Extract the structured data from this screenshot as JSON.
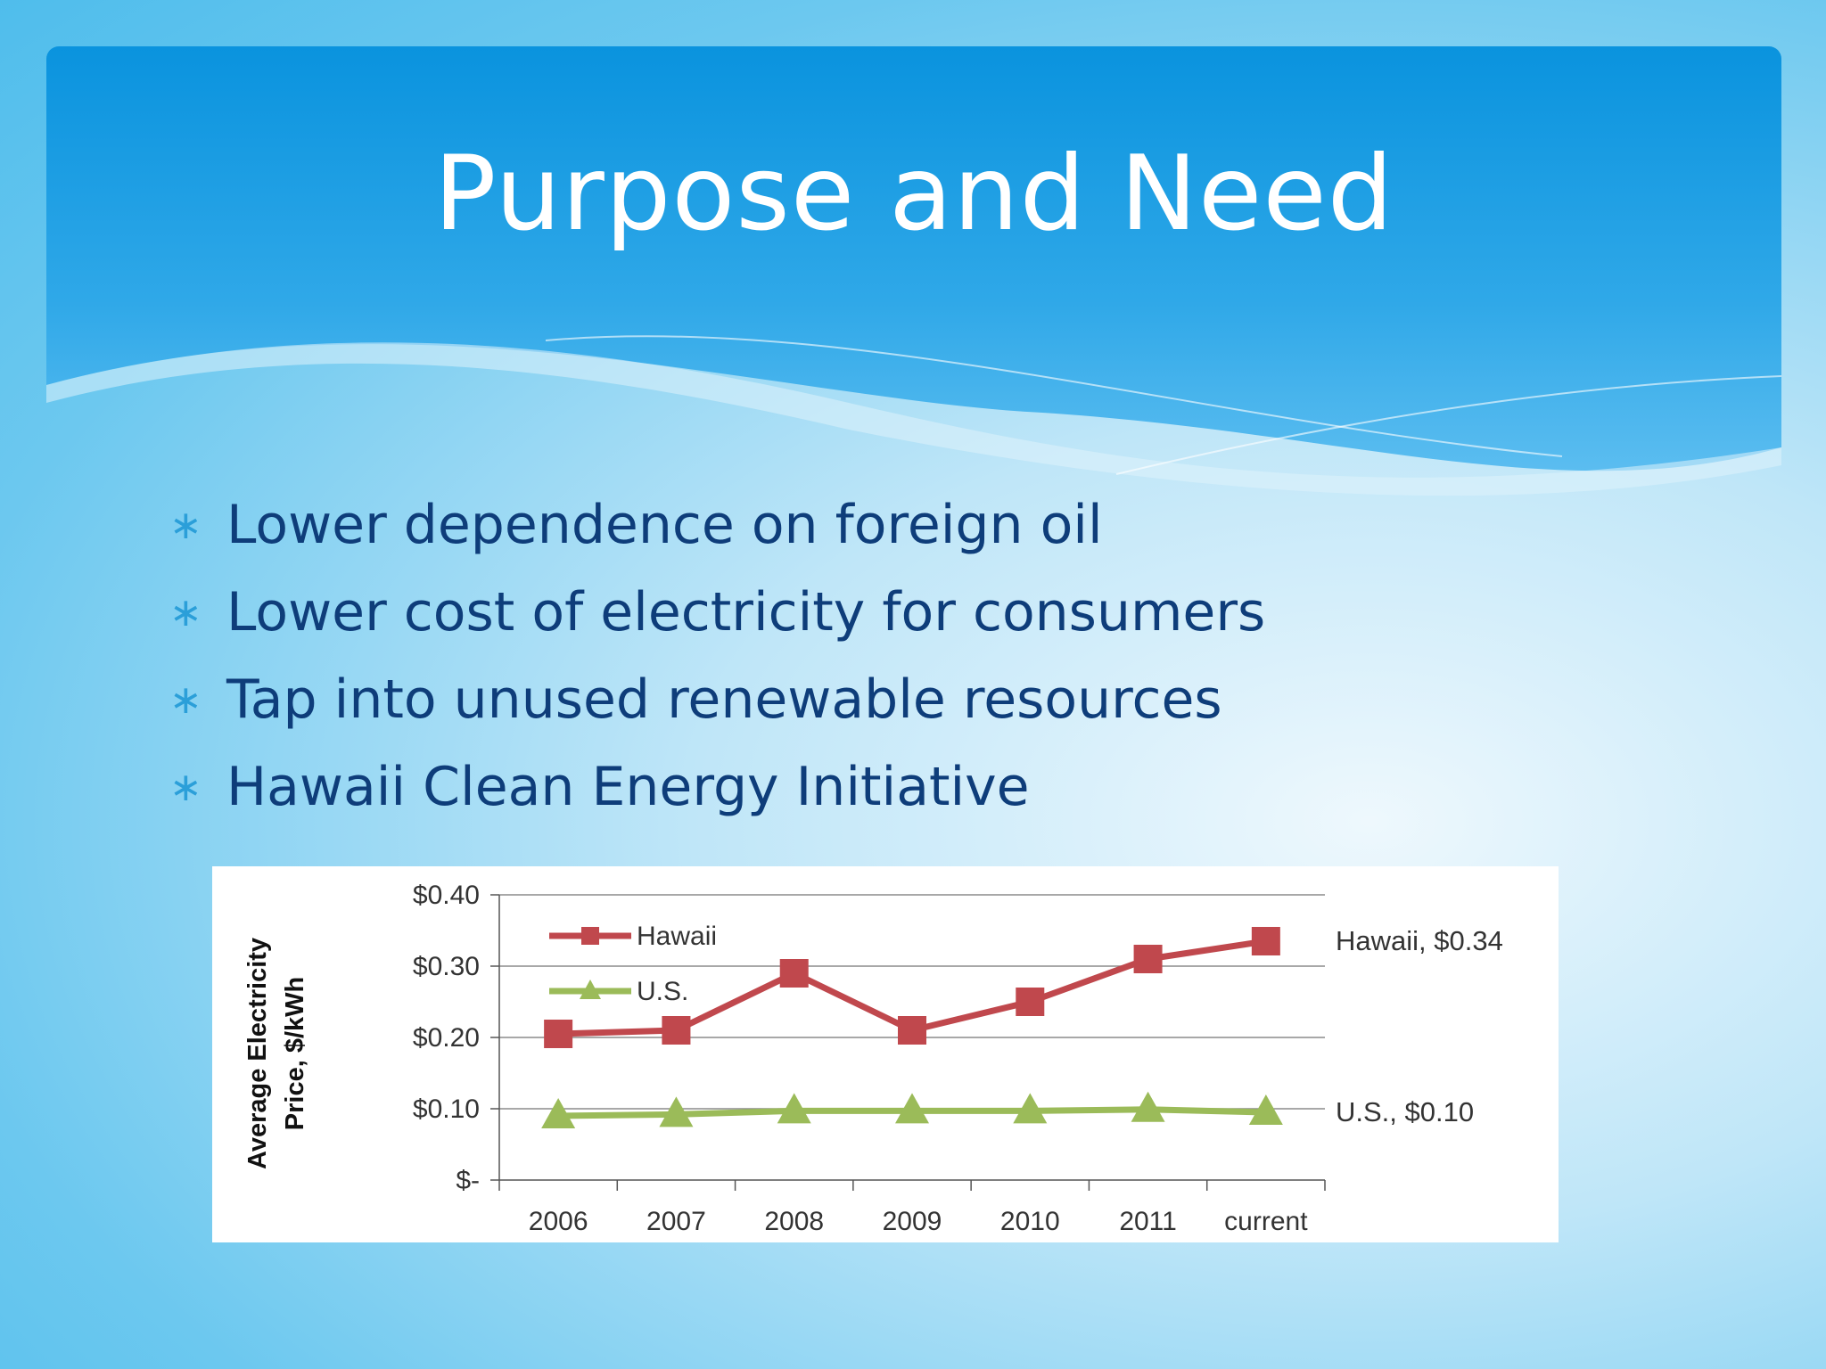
{
  "slide": {
    "title": "Purpose and Need",
    "bullet_symbol": "∗",
    "bullets": [
      "Lower dependence on foreign oil",
      "Lower cost of electricity for consumers",
      "Tap into unused renewable resources",
      "Hawaii Clean Energy Initiative"
    ]
  },
  "chart_data": {
    "type": "line",
    "ylabel_line1": "Average Electricity",
    "ylabel_line2": "Price, $/kWh",
    "categories": [
      "2006",
      "2007",
      "2008",
      "2009",
      "2010",
      "2011",
      "current"
    ],
    "y_ticks": [
      "$0.40",
      "$0.30",
      "$0.20",
      "$0.10",
      "$-"
    ],
    "ylim": [
      0,
      0.4
    ],
    "grid": true,
    "legend_position": "top-left",
    "series": [
      {
        "name": "Hawaii",
        "values": [
          0.205,
          0.21,
          0.29,
          0.21,
          0.25,
          0.31,
          0.335
        ],
        "color": "#c0484d",
        "marker": "square",
        "end_label": "Hawaii, $0.34"
      },
      {
        "name": "U.S.",
        "values": [
          0.09,
          0.092,
          0.097,
          0.097,
          0.097,
          0.099,
          0.095
        ],
        "color": "#9bbb59",
        "marker": "triangle",
        "end_label": "U.S., $0.10"
      }
    ]
  }
}
